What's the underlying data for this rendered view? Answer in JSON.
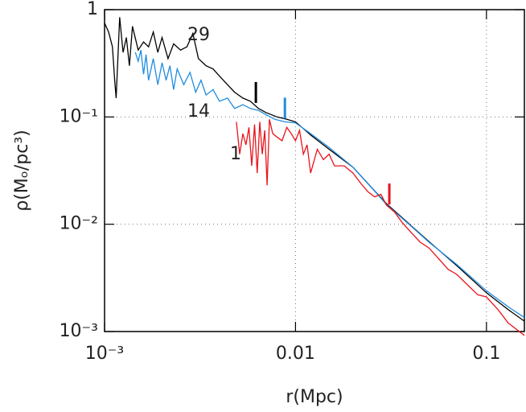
{
  "chart_data": {
    "type": "line",
    "xlabel": "r(Mpc)",
    "ylabel": "ρ(Mₒ/pc³)",
    "log_x": true,
    "log_y": true,
    "grid": true,
    "xlim": [
      0.001,
      0.158
    ],
    "ylim": [
      0.001,
      1
    ],
    "xticks": [
      {
        "value": 0.001,
        "label": "10⁻³"
      },
      0.01,
      0.1
    ],
    "yticks": [
      {
        "value": 0.001,
        "label": "10⁻³"
      },
      {
        "value": 0.01,
        "label": "10⁻²"
      },
      {
        "value": 0.1,
        "label": "10⁻¹"
      },
      1
    ],
    "series": [
      {
        "name": "29",
        "color": "#000000",
        "marker": 0.0062,
        "x": [
          0.001,
          0.00105,
          0.0011,
          0.00113,
          0.00115,
          0.0012,
          0.00125,
          0.0013,
          0.00135,
          0.0014,
          0.0015,
          0.0016,
          0.0017,
          0.0018,
          0.0019,
          0.002,
          0.00215,
          0.0023,
          0.0025,
          0.0027,
          0.0029,
          0.0031,
          0.0034,
          0.0037,
          0.004,
          0.0044,
          0.0048,
          0.0053,
          0.0058,
          0.0064,
          0.007,
          0.008,
          0.009,
          0.01,
          0.012,
          0.015,
          0.02,
          0.025,
          0.03,
          0.04,
          0.05,
          0.07,
          0.1,
          0.13,
          0.158
        ],
        "values": [
          0.75,
          0.62,
          0.45,
          0.22,
          0.15,
          0.85,
          0.4,
          0.55,
          0.3,
          0.7,
          0.42,
          0.5,
          0.45,
          0.62,
          0.4,
          0.55,
          0.35,
          0.48,
          0.42,
          0.45,
          0.6,
          0.35,
          0.3,
          0.28,
          0.24,
          0.2,
          0.17,
          0.15,
          0.14,
          0.12,
          0.11,
          0.1,
          0.095,
          0.09,
          0.068,
          0.05,
          0.034,
          0.022,
          0.0155,
          0.0098,
          0.0069,
          0.0041,
          0.0023,
          0.0016,
          0.00125
        ]
      },
      {
        "name": "14",
        "color": "#1f8ce0",
        "marker": 0.0088,
        "x": [
          0.00145,
          0.0015,
          0.00155,
          0.0016,
          0.00165,
          0.0017,
          0.0018,
          0.0019,
          0.002,
          0.0021,
          0.0022,
          0.0023,
          0.0024,
          0.0026,
          0.0028,
          0.003,
          0.0032,
          0.0034,
          0.0037,
          0.004,
          0.0044,
          0.0048,
          0.0053,
          0.0058,
          0.0064,
          0.007,
          0.0078,
          0.0088,
          0.01,
          0.012,
          0.015,
          0.02,
          0.025,
          0.03,
          0.04,
          0.05,
          0.07,
          0.1,
          0.13,
          0.158
        ],
        "values": [
          0.4,
          0.33,
          0.42,
          0.25,
          0.38,
          0.22,
          0.35,
          0.2,
          0.32,
          0.22,
          0.3,
          0.18,
          0.28,
          0.2,
          0.26,
          0.17,
          0.22,
          0.16,
          0.18,
          0.14,
          0.15,
          0.12,
          0.13,
          0.12,
          0.115,
          0.105,
          0.095,
          0.09,
          0.088,
          0.07,
          0.052,
          0.034,
          0.022,
          0.0152,
          0.0097,
          0.0068,
          0.0042,
          0.0024,
          0.0017,
          0.00135
        ]
      },
      {
        "name": "1",
        "color": "#e8141c",
        "marker": 0.031,
        "x": [
          0.0049,
          0.0051,
          0.0053,
          0.0055,
          0.0057,
          0.0059,
          0.0061,
          0.0063,
          0.0065,
          0.0067,
          0.0069,
          0.0071,
          0.0073,
          0.0076,
          0.008,
          0.0085,
          0.009,
          0.0095,
          0.01,
          0.0105,
          0.011,
          0.0115,
          0.012,
          0.013,
          0.014,
          0.015,
          0.016,
          0.018,
          0.02,
          0.022,
          0.024,
          0.026,
          0.028,
          0.03,
          0.033,
          0.036,
          0.04,
          0.045,
          0.05,
          0.056,
          0.063,
          0.07,
          0.08,
          0.09,
          0.1,
          0.115,
          0.13,
          0.158
        ],
        "values": [
          0.09,
          0.045,
          0.07,
          0.055,
          0.08,
          0.035,
          0.085,
          0.03,
          0.09,
          0.045,
          0.075,
          0.023,
          0.095,
          0.07,
          0.065,
          0.06,
          0.08,
          0.07,
          0.06,
          0.075,
          0.045,
          0.055,
          0.03,
          0.05,
          0.04,
          0.045,
          0.035,
          0.035,
          0.03,
          0.024,
          0.02,
          0.018,
          0.019,
          0.015,
          0.013,
          0.0105,
          0.0085,
          0.0068,
          0.006,
          0.0048,
          0.0038,
          0.0034,
          0.0027,
          0.0022,
          0.0021,
          0.0016,
          0.0012,
          0.00092
        ]
      }
    ]
  }
}
